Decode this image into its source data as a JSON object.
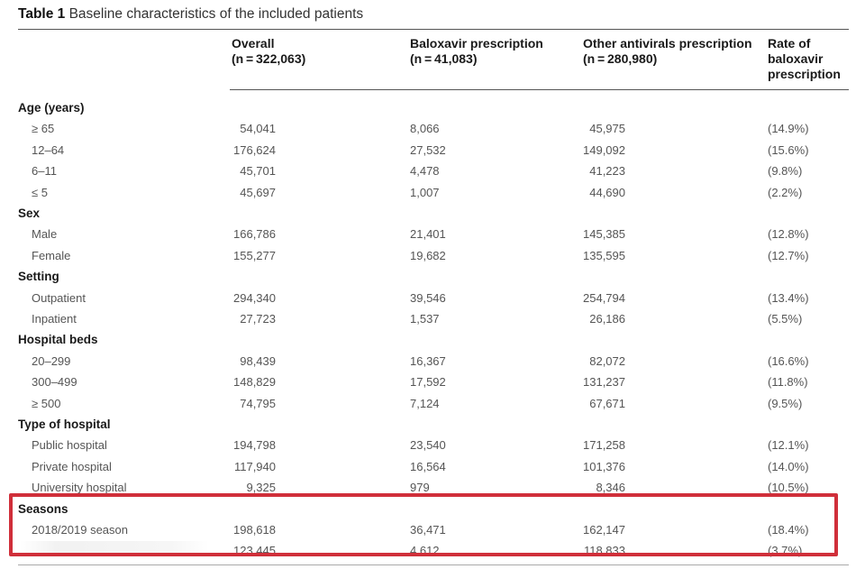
{
  "caption": {
    "label": "Table 1",
    "title": "Baseline characteristics of the included patients"
  },
  "headers": [
    {
      "line1": "Overall",
      "line2": "(n = 322,063)"
    },
    {
      "line1": "Baloxavir prescription",
      "line2": "(n = 41,083)"
    },
    {
      "line1": "Other antivirals prescription",
      "line2": "(n = 280,980)"
    },
    {
      "line1": "Rate of",
      "line2": "baloxavir",
      "line3": "prescription"
    }
  ],
  "rows": [
    {
      "section": "Age (years)"
    },
    {
      "label": "≥ 65",
      "overall": "54,041",
      "baloxavir": "8,066",
      "other": "45,975",
      "rate": "(14.9%)"
    },
    {
      "label": "12–64",
      "overall": "176,624",
      "baloxavir": "27,532",
      "other": "149,092",
      "rate": "(15.6%)"
    },
    {
      "label": "6–11",
      "overall": "45,701",
      "baloxavir": "4,478",
      "other": "41,223",
      "rate": "(9.8%)"
    },
    {
      "label": "≤ 5",
      "overall": "45,697",
      "baloxavir": "1,007",
      "other": "44,690",
      "rate": "(2.2%)"
    },
    {
      "section": "Sex"
    },
    {
      "label": "Male",
      "overall": "166,786",
      "baloxavir": "21,401",
      "other": "145,385",
      "rate": "(12.8%)"
    },
    {
      "label": "Female",
      "overall": "155,277",
      "baloxavir": "19,682",
      "other": "135,595",
      "rate": "(12.7%)"
    },
    {
      "section": "Setting"
    },
    {
      "label": "Outpatient",
      "overall": "294,340",
      "baloxavir": "39,546",
      "other": "254,794",
      "rate": "(13.4%)"
    },
    {
      "label": "Inpatient",
      "overall": "27,723",
      "baloxavir": "1,537",
      "other": "26,186",
      "rate": "(5.5%)"
    },
    {
      "section": "Hospital beds"
    },
    {
      "label": "20–299",
      "overall": "98,439",
      "baloxavir": "16,367",
      "other": "82,072",
      "rate": "(16.6%)"
    },
    {
      "label": "300–499",
      "overall": "148,829",
      "baloxavir": "17,592",
      "other": "131,237",
      "rate": "(11.8%)"
    },
    {
      "label": "≥ 500",
      "overall": "74,795",
      "baloxavir": "7,124",
      "other": "67,671",
      "rate": "(9.5%)"
    },
    {
      "section": "Type of hospital"
    },
    {
      "label": "Public hospital",
      "overall": "194,798",
      "baloxavir": "23,540",
      "other": "171,258",
      "rate": "(12.1%)"
    },
    {
      "label": "Private hospital",
      "overall": "117,940",
      "baloxavir": "16,564",
      "other": "101,376",
      "rate": "(14.0%)"
    },
    {
      "label": "University hospital",
      "overall": "9,325",
      "baloxavir": "979",
      "other": "8,346",
      "rate": "(10.5%)"
    },
    {
      "section": "Seasons"
    },
    {
      "label": "2018/2019 season",
      "overall": "198,618",
      "baloxavir": "36,471",
      "other": "162,147",
      "rate": "(18.4%)"
    },
    {
      "label": "",
      "overall": "123,445",
      "baloxavir": "4,612",
      "other": "118,833",
      "rate": "(3.7%)"
    }
  ],
  "colors": {
    "highlight_border": "#d02f3a",
    "text": "#555555",
    "heading": "#1a1a1a"
  }
}
